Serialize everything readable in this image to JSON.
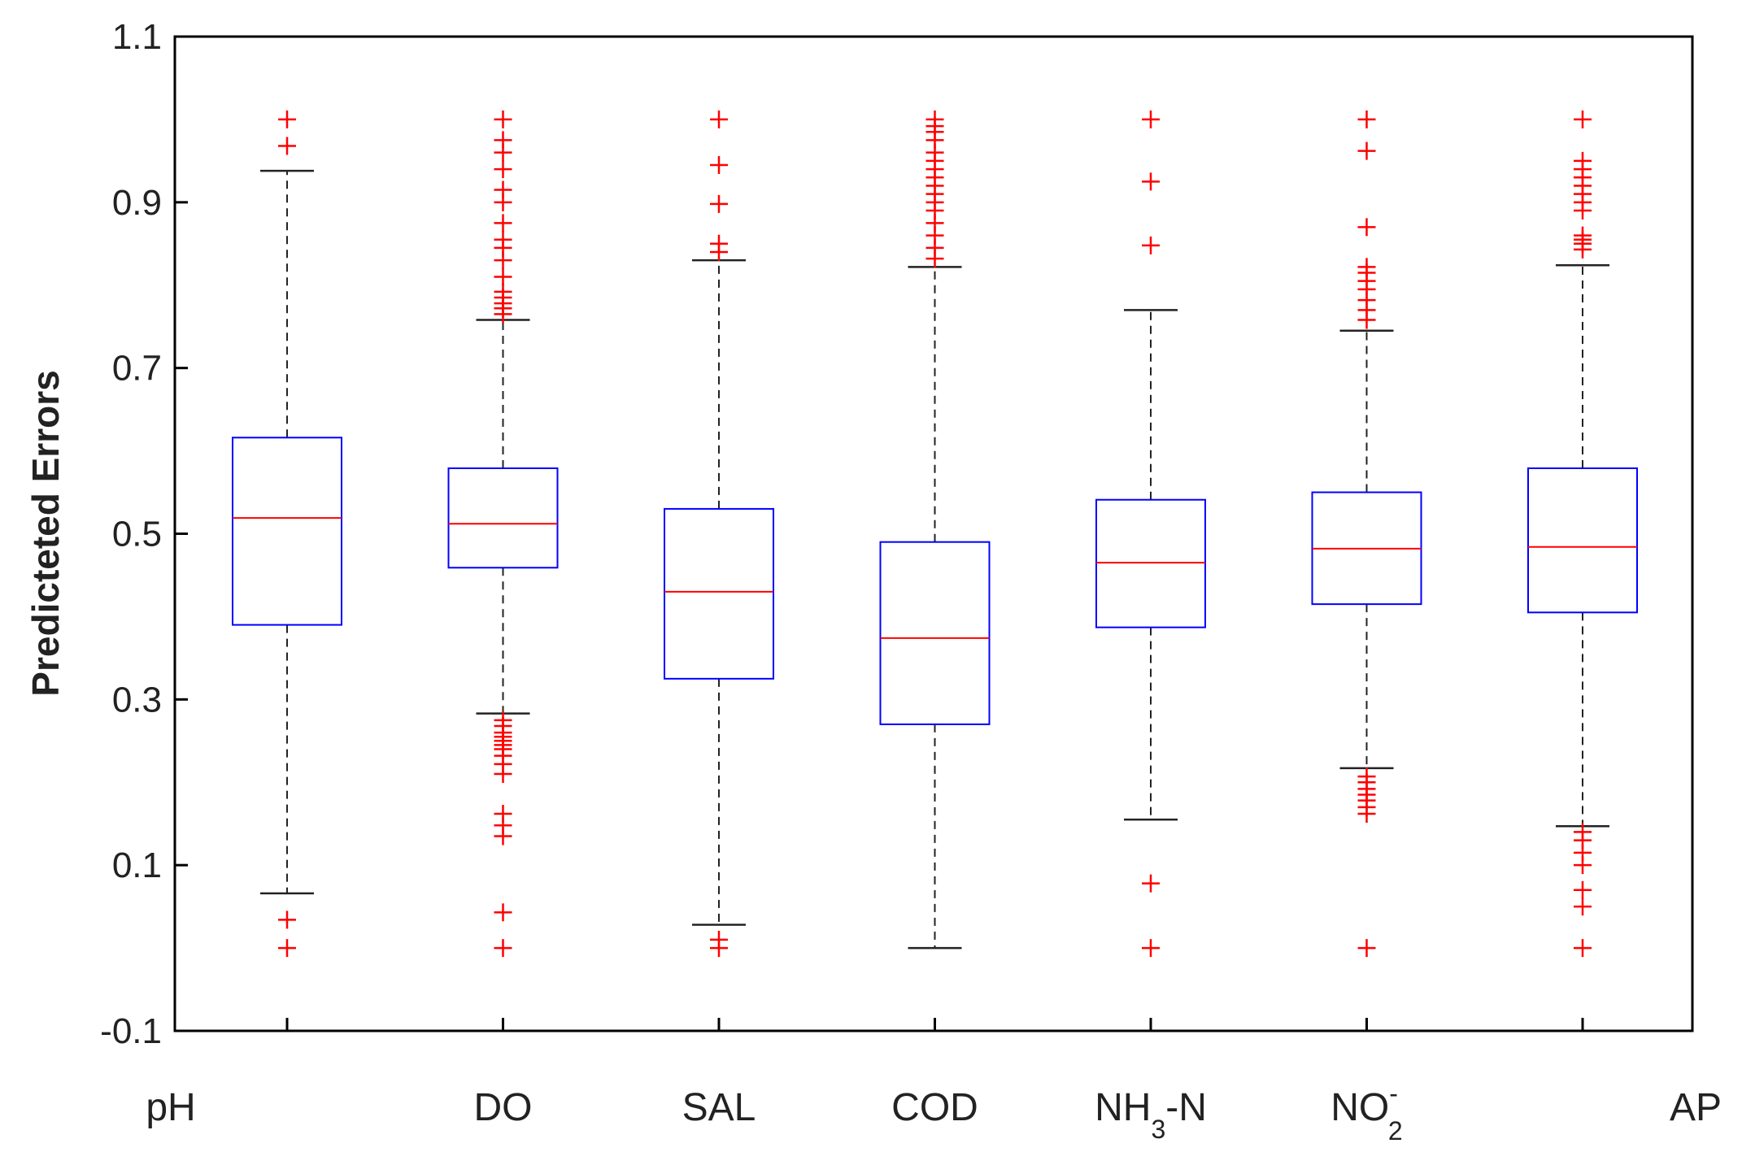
{
  "chart_data": {
    "type": "boxplot",
    "title": "",
    "xlabel": "",
    "ylabel": "Predicteted Errors",
    "ylim": [
      -0.1,
      1.1
    ],
    "yticks": [
      -0.1,
      0.1,
      0.3,
      0.5,
      0.7,
      0.9,
      1.1
    ],
    "ytick_labels": [
      "-0.1",
      "0.1",
      "0.3",
      "0.5",
      "0.7",
      "0.9",
      "1.1"
    ],
    "grid": false,
    "colors": {
      "box": "#0000ff",
      "median": "#ff0000",
      "whisker": "#000000",
      "outlier": "#ff0000",
      "axis": "#000000"
    },
    "categories": [
      {
        "label": "pH",
        "base": "pH",
        "sub": "",
        "sup": "",
        "suffix": ""
      },
      {
        "label": "DO",
        "base": "DO",
        "sub": "",
        "sup": "",
        "suffix": ""
      },
      {
        "label": "SAL",
        "base": "SAL",
        "sub": "",
        "sup": "",
        "suffix": ""
      },
      {
        "label": "COD",
        "base": "COD",
        "sub": "",
        "sup": "",
        "suffix": ""
      },
      {
        "label": "NH3-N",
        "base": "NH",
        "sub": "3",
        "sup": "",
        "suffix": "-N"
      },
      {
        "label": "NO2-",
        "base": "NO",
        "sub": "2",
        "sup": "-",
        "suffix": ""
      },
      {
        "label": "AP",
        "base": "AP",
        "sub": "",
        "sup": "",
        "suffix": ""
      }
    ],
    "boxes": [
      {
        "name": "pH",
        "whisker_low": 0.066,
        "q1": 0.39,
        "median": 0.519,
        "q3": 0.616,
        "whisker_high": 0.938,
        "outliers": [
          0.0,
          0.034,
          0.968,
          1.0
        ]
      },
      {
        "name": "DO",
        "whisker_low": 0.283,
        "q1": 0.459,
        "median": 0.512,
        "q3": 0.579,
        "whisker_high": 0.758,
        "outliers": [
          0.0,
          0.043,
          0.135,
          0.148,
          0.162,
          0.21,
          0.222,
          0.232,
          0.24,
          0.245,
          0.25,
          0.255,
          0.26,
          0.268,
          0.275,
          0.765,
          0.772,
          0.778,
          0.785,
          0.792,
          0.81,
          0.83,
          0.845,
          0.855,
          0.875,
          0.9,
          0.915,
          0.94,
          0.96,
          0.975,
          1.0
        ]
      },
      {
        "name": "SAL",
        "whisker_low": 0.028,
        "q1": 0.325,
        "median": 0.43,
        "q3": 0.53,
        "whisker_high": 0.83,
        "outliers": [
          0.0,
          0.01,
          0.84,
          0.85,
          0.898,
          0.945,
          1.0
        ]
      },
      {
        "name": "COD",
        "whisker_low": 0.0,
        "q1": 0.27,
        "median": 0.374,
        "q3": 0.49,
        "whisker_high": 0.822,
        "outliers": [
          0.832,
          0.845,
          0.86,
          0.875,
          0.89,
          0.9,
          0.91,
          0.92,
          0.93,
          0.94,
          0.95,
          0.96,
          0.975,
          0.985,
          0.992,
          1.0
        ]
      },
      {
        "name": "NH3-N",
        "whisker_low": 0.155,
        "q1": 0.387,
        "median": 0.465,
        "q3": 0.541,
        "whisker_high": 0.77,
        "outliers": [
          0.0,
          0.078,
          0.848,
          0.925,
          1.0
        ]
      },
      {
        "name": "NO2-",
        "whisker_low": 0.217,
        "q1": 0.415,
        "median": 0.482,
        "q3": 0.55,
        "whisker_high": 0.745,
        "outliers": [
          0.0,
          0.162,
          0.17,
          0.178,
          0.185,
          0.192,
          0.2,
          0.207,
          0.758,
          0.77,
          0.782,
          0.795,
          0.805,
          0.815,
          0.822,
          0.87,
          0.962,
          1.0
        ]
      },
      {
        "name": "AP",
        "whisker_low": 0.147,
        "q1": 0.405,
        "median": 0.484,
        "q3": 0.579,
        "whisker_high": 0.824,
        "outliers": [
          0.0,
          0.05,
          0.07,
          0.1,
          0.115,
          0.13,
          0.14,
          0.843,
          0.85,
          0.855,
          0.86,
          0.89,
          0.9,
          0.91,
          0.92,
          0.93,
          0.94,
          0.95,
          1.0
        ]
      }
    ]
  }
}
